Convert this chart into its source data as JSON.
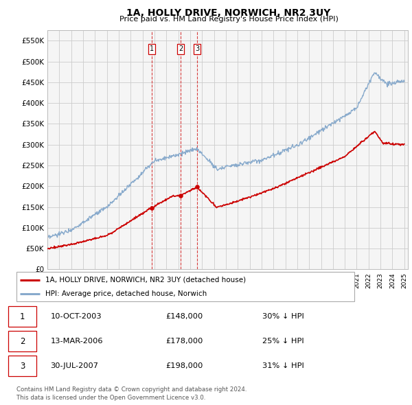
{
  "title": "1A, HOLLY DRIVE, NORWICH, NR2 3UY",
  "subtitle": "Price paid vs. HM Land Registry's House Price Index (HPI)",
  "ylabel_ticks": [
    "£0",
    "£50K",
    "£100K",
    "£150K",
    "£200K",
    "£250K",
    "£300K",
    "£350K",
    "£400K",
    "£450K",
    "£500K",
    "£550K"
  ],
  "ytick_vals": [
    0,
    50000,
    100000,
    150000,
    200000,
    250000,
    300000,
    350000,
    400000,
    450000,
    500000,
    550000
  ],
  "xlim_start": 1995.0,
  "xlim_end": 2025.3,
  "ylim_min": 0,
  "ylim_max": 575000,
  "sale_dates_num": [
    2003.78,
    2006.2,
    2007.58
  ],
  "sale_labels": [
    "1",
    "2",
    "3"
  ],
  "sale_prices_plot": [
    148000,
    178000,
    198000
  ],
  "sale_info": [
    {
      "num": "1",
      "date": "10-OCT-2003",
      "price": "£148,000",
      "pct": "30% ↓ HPI"
    },
    {
      "num": "2",
      "date": "13-MAR-2006",
      "price": "£178,000",
      "pct": "25% ↓ HPI"
    },
    {
      "num": "3",
      "date": "30-JUL-2007",
      "price": "£198,000",
      "pct": "31% ↓ HPI"
    }
  ],
  "legend_line1": "1A, HOLLY DRIVE, NORWICH, NR2 3UY (detached house)",
  "legend_line2": "HPI: Average price, detached house, Norwich",
  "footer_line1": "Contains HM Land Registry data © Crown copyright and database right 2024.",
  "footer_line2": "This data is licensed under the Open Government Licence v3.0.",
  "line_color_red": "#cc0000",
  "line_color_blue": "#88aacc",
  "grid_color": "#cccccc",
  "plot_bg": "#f5f5f5"
}
